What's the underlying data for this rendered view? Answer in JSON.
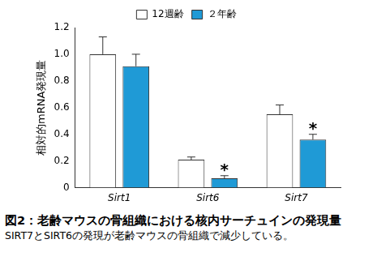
{
  "chart_data": {
    "type": "bar",
    "title": "図2：老齢マウスの骨組織における核内サーチュインの発現量",
    "subtitle": "SIRT7とSIRT6の発現が老齢マウスの骨組織で減少している。",
    "y_label": "相対的mRNA発現量",
    "categories": [
      "Sirt1",
      "Sirt6",
      "Sirt7"
    ],
    "series": [
      {
        "name": "12週齢",
        "color": "#ffffff",
        "values": [
          1.0,
          0.21,
          0.55
        ],
        "errors": [
          0.13,
          0.02,
          0.07
        ]
      },
      {
        "name": "２年齢",
        "color": "#1f9ad6",
        "values": [
          0.91,
          0.07,
          0.36
        ],
        "errors": [
          0.09,
          0.02,
          0.04
        ]
      }
    ],
    "annotations": [
      {
        "text": "*",
        "series": "２年齢",
        "category": "Sirt6"
      },
      {
        "text": "*",
        "series": "２年齢",
        "category": "Sirt7"
      }
    ],
    "ylim": [
      0,
      1.2
    ],
    "yticks": [
      0,
      0.2,
      0.4,
      0.6,
      0.8,
      {
        "value": 1,
        "label": "1.0"
      },
      1.2
    ],
    "grid": false,
    "legend": "top"
  }
}
